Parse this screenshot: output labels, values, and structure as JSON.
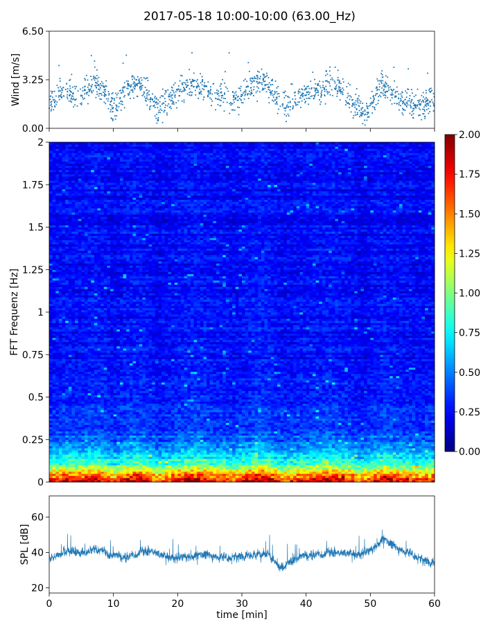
{
  "figure": {
    "title": "2017-05-18 10:00-10:00 (63.00_Hz)"
  },
  "chart_data": [
    {
      "type": "scatter",
      "name": "wind-panel",
      "ylabel": "Wind [m/s]",
      "xlim": [
        0,
        60
      ],
      "ylim": [
        0,
        6.5
      ],
      "yticks": [
        0.0,
        3.25,
        6.5
      ],
      "ytick_labels": [
        "0.00",
        "3.25",
        "6.50"
      ],
      "xticks": [
        0,
        10,
        20,
        30,
        40,
        50,
        60
      ],
      "color": "#1f77b4",
      "x": [
        0,
        1,
        2,
        3,
        4,
        5,
        6,
        7,
        8,
        9,
        10,
        11,
        12,
        13,
        14,
        15,
        16,
        17,
        18,
        19,
        20,
        21,
        22,
        23,
        24,
        25,
        26,
        27,
        28,
        29,
        30,
        31,
        32,
        33,
        34,
        35,
        36,
        37,
        38,
        39,
        40,
        41,
        42,
        43,
        44,
        45,
        46,
        47,
        48,
        49,
        50,
        51,
        52,
        53,
        54,
        55,
        56,
        57,
        58,
        59,
        60
      ],
      "y": [
        1.8,
        2.1,
        2.3,
        2.6,
        2.0,
        2.2,
        2.7,
        2.9,
        2.6,
        2.2,
        1.2,
        1.9,
        2.6,
        2.9,
        3.0,
        2.6,
        1.9,
        1.1,
        1.7,
        2.0,
        2.3,
        2.6,
        2.9,
        3.0,
        2.6,
        2.3,
        2.1,
        2.4,
        1.9,
        1.7,
        2.2,
        2.6,
        3.0,
        3.3,
        2.9,
        2.4,
        1.7,
        1.5,
        1.9,
        2.1,
        2.3,
        2.5,
        2.4,
        2.8,
        2.9,
        2.6,
        2.3,
        2.0,
        1.5,
        0.8,
        1.7,
        2.4,
        2.8,
        2.6,
        2.2,
        1.9,
        1.8,
        1.6,
        1.4,
        1.7,
        1.9
      ]
    },
    {
      "type": "heatmap",
      "name": "spectrogram-panel",
      "ylabel": "FFT Frequenz [Hz]",
      "xlim": [
        0,
        60
      ],
      "ylim": [
        0,
        2
      ],
      "yticks": [
        0,
        0.25,
        0.5,
        0.75,
        1,
        1.25,
        1.5,
        1.75,
        2
      ],
      "ytick_labels": [
        "0",
        "0.25",
        "0.5",
        "0.75",
        "1",
        "1.25",
        "1.5",
        "1.75",
        "2"
      ],
      "colormap": "jet",
      "colorbar": {
        "vmin": 0,
        "vmax": 2,
        "ticks": [
          0.0,
          0.25,
          0.5,
          0.75,
          1.0,
          1.25,
          1.5,
          1.75,
          2.0
        ],
        "tick_labels": [
          "0.00",
          "0.25",
          "0.50",
          "0.75",
          "1.00",
          "1.25",
          "1.50",
          "1.75",
          "2.00"
        ]
      },
      "freq_profile_hz": [
        0.0,
        0.05,
        0.1,
        0.15,
        0.2,
        0.25,
        0.3,
        0.4,
        0.5,
        0.75,
        1.0,
        1.5,
        2.0
      ],
      "freq_profile_level": [
        1.8,
        1.4,
        0.9,
        0.7,
        0.55,
        0.45,
        0.38,
        0.33,
        0.3,
        0.27,
        0.26,
        0.25,
        0.24
      ]
    },
    {
      "type": "line",
      "name": "spl-panel",
      "ylabel": "SPL [dB]",
      "xlabel": "time [min]",
      "xlim": [
        0,
        60
      ],
      "ylim": [
        17,
        72
      ],
      "yticks": [
        20,
        40,
        60
      ],
      "ytick_labels": [
        "20",
        "40",
        "60"
      ],
      "xticks": [
        0,
        10,
        20,
        30,
        40,
        50,
        60
      ],
      "xtick_labels": [
        "0",
        "10",
        "20",
        "30",
        "40",
        "50",
        "60"
      ],
      "color": "#1f77b4",
      "x": [
        0,
        2,
        4,
        6,
        8,
        10,
        12,
        14,
        16,
        18,
        20,
        22,
        24,
        26,
        28,
        30,
        32,
        34,
        36,
        38,
        40,
        42,
        44,
        46,
        48,
        50,
        52,
        54,
        56,
        58,
        60
      ],
      "y": [
        37,
        40,
        41,
        40,
        42,
        38,
        37,
        40,
        41,
        38,
        37,
        38,
        39,
        38,
        37,
        38,
        39,
        40,
        30,
        36,
        38,
        39,
        40,
        40,
        39,
        41,
        48,
        43,
        40,
        36,
        34
      ]
    }
  ]
}
